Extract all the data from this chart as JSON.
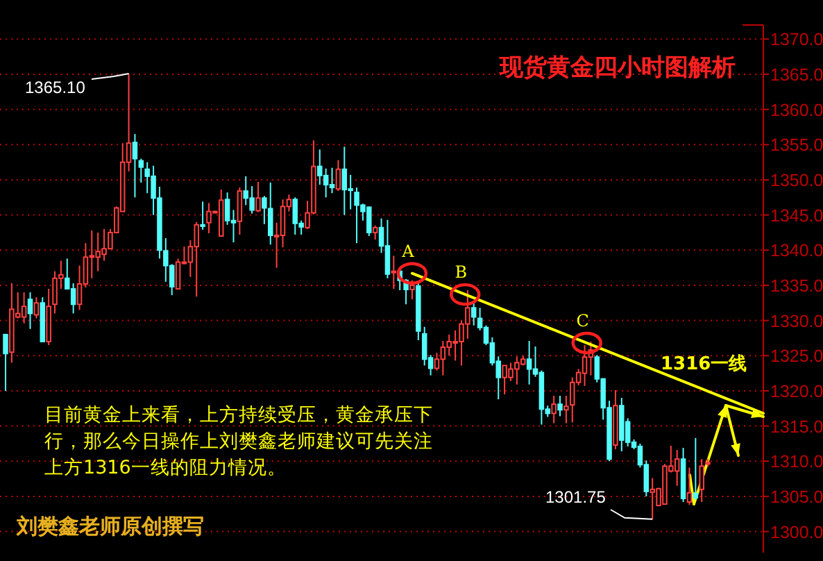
{
  "chart_data": {
    "type": "candlestick",
    "title": "现货黄金四小时图解析",
    "categories": [
      null,
      null,
      null,
      null,
      null,
      null,
      null,
      null,
      null,
      null,
      null,
      null,
      null,
      null,
      null,
      null,
      null,
      null,
      null,
      null,
      null,
      null,
      null,
      null,
      null,
      null,
      null,
      null,
      null,
      null,
      null,
      null,
      null,
      null,
      null,
      null,
      null,
      null,
      null,
      null,
      null,
      null,
      null,
      null,
      null,
      null,
      null,
      null,
      null,
      null,
      null,
      null,
      null,
      null,
      null,
      null,
      null,
      null,
      null,
      null,
      null,
      null,
      null,
      null,
      null,
      null,
      null,
      null,
      null,
      null,
      null,
      null,
      null,
      null,
      null,
      null,
      null,
      null,
      null,
      null,
      null,
      null,
      null,
      null,
      null,
      null,
      null,
      null,
      null,
      null,
      null,
      null,
      null,
      null,
      null,
      null,
      null,
      null,
      null,
      null,
      null,
      null,
      null,
      null,
      null,
      null,
      null,
      null,
      null,
      null,
      null,
      null,
      null,
      null,
      null,
      null,
      null,
      null,
      null,
      null,
      null,
      null,
      null,
      null
    ],
    "ohlc": [
      [
        1328,
        1328,
        1320,
        1325.3
      ],
      [
        1325.5,
        1335.3,
        1324,
        1331.6
      ],
      [
        1330.5,
        1334,
        1330.3,
        1331
      ],
      [
        1330.5,
        1334,
        1329.6,
        1332
      ],
      [
        1333,
        1334,
        1328.8,
        1331
      ],
      [
        1330.8,
        1333.3,
        1330.3,
        1332.5
      ],
      [
        1332.5,
        1333.3,
        1327,
        1327
      ],
      [
        1327,
        1334.5,
        1326.5,
        1332
      ],
      [
        1332.3,
        1337,
        1331,
        1336
      ],
      [
        1336,
        1338.5,
        1334.5,
        1336.5
      ],
      [
        1336,
        1338.8,
        1334.5,
        1334.5
      ],
      [
        1334.5,
        1335.3,
        1331,
        1332.3
      ],
      [
        1332.3,
        1337.8,
        1331.5,
        1335.2
      ],
      [
        1335.2,
        1341,
        1334.7,
        1339
      ],
      [
        1339,
        1342.8,
        1336,
        1339.2
      ],
      [
        1339,
        1342.5,
        1337,
        1339.8
      ],
      [
        1339.4,
        1343,
        1338.5,
        1340.2
      ],
      [
        1340.2,
        1343,
        1340.2,
        1342.5
      ],
      [
        1342.5,
        1346.2,
        1342.5,
        1346
      ],
      [
        1345.5,
        1355.2,
        1345.5,
        1352.5
      ],
      [
        1352.5,
        1365.1,
        1351.2,
        1355.2
      ],
      [
        1355.3,
        1356.5,
        1347.5,
        1353
      ],
      [
        1352.7,
        1353,
        1349.6,
        1351.8
      ],
      [
        1351.5,
        1352.5,
        1348.1,
        1350.5
      ],
      [
        1350.5,
        1352,
        1345,
        1347.4
      ],
      [
        1347.4,
        1349,
        1338.8,
        1340
      ],
      [
        1339.9,
        1341.7,
        1335.5,
        1337.8
      ],
      [
        1337.8,
        1338,
        1333.6,
        1334.8
      ],
      [
        1334.5,
        1338.8,
        1334.4,
        1338.3
      ],
      [
        1338.2,
        1340.5,
        1338,
        1338.3
      ],
      [
        1338.3,
        1341.4,
        1336.2,
        1340.5
      ],
      [
        1340.5,
        1344,
        1333.4,
        1343.6
      ],
      [
        1343.6,
        1346.9,
        1342.9,
        1343.4
      ],
      [
        1343.9,
        1346.7,
        1342.4,
        1345.5
      ],
      [
        1345.5,
        1345.6,
        1345.4,
        1345.5
      ],
      [
        1342,
        1348.6,
        1341.9,
        1347.1
      ],
      [
        1347.2,
        1348.2,
        1343.6,
        1344.2
      ],
      [
        1344.2,
        1345.7,
        1341.1,
        1343.9
      ],
      [
        1344.1,
        1348.9,
        1342.2,
        1348.4
      ],
      [
        1348.4,
        1350.5,
        1346.4,
        1347.4
      ],
      [
        1347.4,
        1349.1,
        1345.2,
        1345.7
      ],
      [
        1345.6,
        1349.7,
        1345.4,
        1347.4
      ],
      [
        1347.4,
        1347.7,
        1343.7,
        1346
      ],
      [
        1345.9,
        1349.6,
        1340.8,
        1342.1
      ],
      [
        1342,
        1343.9,
        1337.5,
        1342.1
      ],
      [
        1342.1,
        1347.2,
        1340.4,
        1346.2
      ],
      [
        1346.2,
        1347.9,
        1345.5,
        1347.2
      ],
      [
        1347.2,
        1347.5,
        1342.2,
        1343.8
      ],
      [
        1343.8,
        1344.2,
        1342.2,
        1343.3
      ],
      [
        1343.2,
        1347,
        1343,
        1345.3
      ],
      [
        1345.3,
        1355.6,
        1345.1,
        1351.9
      ],
      [
        1351.9,
        1354.3,
        1349.3,
        1350.6
      ],
      [
        1350.6,
        1351.6,
        1347.5,
        1349.3
      ],
      [
        1349.3,
        1351.7,
        1348.1,
        1348.9
      ],
      [
        1348.7,
        1352.8,
        1348.4,
        1351.5
      ],
      [
        1351.5,
        1354.7,
        1345,
        1348.6
      ],
      [
        1348.7,
        1350.7,
        1345.8,
        1348.5
      ],
      [
        1348.2,
        1348.9,
        1341,
        1346.4
      ],
      [
        1346.4,
        1346.6,
        1344.2,
        1345.5
      ],
      [
        1346.1,
        1346.2,
        1342,
        1342.5
      ],
      [
        1342.5,
        1343.5,
        1341.5,
        1343.2
      ],
      [
        1343.2,
        1344.5,
        1339.6,
        1340.6
      ],
      [
        1340.6,
        1344.3,
        1336,
        1336.6
      ],
      [
        1336.8,
        1339.2,
        1334.5,
        1337
      ],
      [
        1337,
        1337.3,
        1334.3,
        1335.7
      ],
      [
        1335.7,
        1335.9,
        1332.3,
        1334.4
      ],
      [
        1334.4,
        1335.7,
        1333,
        1335
      ],
      [
        1334.9,
        1335.5,
        1327.2,
        1328.5
      ],
      [
        1328.1,
        1329.1,
        1323.6,
        1324.5
      ],
      [
        1324.7,
        1325.1,
        1322.2,
        1323.2
      ],
      [
        1323.2,
        1325.4,
        1322.9,
        1324.5
      ],
      [
        1324.5,
        1327.1,
        1322.2,
        1326.2
      ],
      [
        1326.2,
        1328,
        1325,
        1327
      ],
      [
        1326.9,
        1328.6,
        1324.3,
        1327
      ],
      [
        1327,
        1330,
        1323.6,
        1329.5
      ],
      [
        1329.5,
        1334.3,
        1327.4,
        1331.8
      ],
      [
        1331.8,
        1332.8,
        1329.3,
        1330.5
      ],
      [
        1330.3,
        1331.8,
        1328.6,
        1329
      ],
      [
        1329,
        1329.3,
        1326.5,
        1326.8
      ],
      [
        1326.8,
        1327.6,
        1323.6,
        1324
      ],
      [
        1324.2,
        1324.9,
        1318.8,
        1321.9
      ],
      [
        1321.9,
        1323.6,
        1319.5,
        1323.6
      ],
      [
        1321.9,
        1324,
        1321.4,
        1323.1
      ],
      [
        1323.1,
        1324.9,
        1320.9,
        1324
      ],
      [
        1323.8,
        1325,
        1323.6,
        1324.5
      ],
      [
        1324.5,
        1327.1,
        1320.9,
        1323.1
      ],
      [
        1323.1,
        1326.3,
        1322,
        1322.4
      ],
      [
        1322.6,
        1322.9,
        1315.2,
        1317.4
      ],
      [
        1317.4,
        1317.9,
        1316.3,
        1316.8
      ],
      [
        1316.8,
        1319.3,
        1315.4,
        1318.1
      ],
      [
        1318.1,
        1319.3,
        1316.4,
        1317.3
      ],
      [
        1317.3,
        1319.3,
        1315.4,
        1317.8
      ],
      [
        1318,
        1321.9,
        1315.5,
        1321.2
      ],
      [
        1321.2,
        1323.1,
        1320.8,
        1322.6
      ],
      [
        1322.5,
        1326.5,
        1320.7,
        1324.8
      ],
      [
        1324.8,
        1327,
        1322.2,
        1325.8
      ],
      [
        1324.8,
        1325.1,
        1321.2,
        1321.7
      ],
      [
        1321.7,
        1321.8,
        1315.9,
        1317.6
      ],
      [
        1317.6,
        1318.6,
        1310,
        1310.3
      ],
      [
        1312.3,
        1320.1,
        1311.7,
        1317.9
      ],
      [
        1317.9,
        1319,
        1311.4,
        1313
      ],
      [
        1315.6,
        1316.1,
        1312.1,
        1312.7
      ],
      [
        1312.7,
        1313.1,
        1311.7,
        1312
      ],
      [
        1312.1,
        1312.5,
        1309.1,
        1309.5
      ],
      [
        1309.5,
        1310.1,
        1305,
        1305.7
      ],
      [
        1305.6,
        1307.6,
        1301.75,
        1306
      ],
      [
        1303.7,
        1306.2,
        1303.7,
        1306.1
      ],
      [
        1303.9,
        1309.6,
        1303.9,
        1309.3
      ],
      [
        1308.6,
        1312.2,
        1308.4,
        1309.3
      ],
      [
        1308.6,
        1311.6,
        1306.5,
        1310.3
      ],
      [
        1310.3,
        1311.9,
        1304.2,
        1304.7
      ],
      [
        1304.2,
        1309.1,
        1303.8,
        1305.5
      ],
      [
        1305.4,
        1313.3,
        1304.5,
        1304.8
      ],
      [
        1306,
        1310.3,
        1304.2,
        1309.3
      ],
      [
        1309.6,
        1310.3,
        1309.2,
        1309.8
      ],
      null,
      null,
      null,
      null,
      null,
      null,
      null,
      null,
      null
    ],
    "colors": [
      "#54fcfc",
      "#ff4040",
      "#ff4040",
      "#ff4040",
      "#54fcfc",
      "#ff4040",
      "#54fcfc",
      "#ff4040",
      "#ff4040",
      "#ff4040",
      "#54fcfc",
      "#54fcfc",
      "#ff4040",
      "#ff4040",
      "#ff4040",
      "#ff4040",
      "#ff4040",
      "#ff4040",
      "#ff4040",
      "#ff4040",
      "#ff4040",
      "#54fcfc",
      "#54fcfc",
      "#54fcfc",
      "#54fcfc",
      "#54fcfc",
      "#54fcfc",
      "#54fcfc",
      "#ff4040",
      "#ff4040",
      "#ff4040",
      "#ff4040",
      "#54fcfc",
      "#ff4040",
      "#ff4040",
      "#ff4040",
      "#54fcfc",
      "#54fcfc",
      "#ff4040",
      "#54fcfc",
      "#54fcfc",
      "#ff4040",
      "#54fcfc",
      "#54fcfc",
      "#ff4040",
      "#ff4040",
      "#ff4040",
      "#54fcfc",
      "#54fcfc",
      "#ff4040",
      "#ff4040",
      "#54fcfc",
      "#54fcfc",
      "#54fcfc",
      "#ff4040",
      "#54fcfc",
      "#54fcfc",
      "#54fcfc",
      "#54fcfc",
      "#54fcfc",
      "#ff4040",
      "#54fcfc",
      "#54fcfc",
      "#ff4040",
      "#54fcfc",
      "#54fcfc",
      "#ff4040",
      "#54fcfc",
      "#54fcfc",
      "#54fcfc",
      "#ff4040",
      "#ff4040",
      "#ff4040",
      "#ff4040",
      "#ff4040",
      "#ff4040",
      "#54fcfc",
      "#54fcfc",
      "#54fcfc",
      "#54fcfc",
      "#54fcfc",
      "#ff4040",
      "#ff4040",
      "#ff4040",
      "#ff4040",
      "#54fcfc",
      "#54fcfc",
      "#54fcfc",
      "#54fcfc",
      "#ff4040",
      "#54fcfc",
      "#ff4040",
      "#ff4040",
      "#ff4040",
      "#ff4040",
      "#ff4040",
      "#54fcfc",
      "#54fcfc",
      "#54fcfc",
      "#ff4040",
      "#54fcfc",
      "#54fcfc",
      "#54fcfc",
      "#54fcfc",
      "#54fcfc",
      "#ff4040",
      "#ff4040",
      "#ff4040",
      "#ff4040",
      "#ff4040",
      "#54fcfc",
      "#ff4040",
      "#54fcfc",
      "#ff4040",
      "#ff4040",
      null,
      null,
      null,
      null,
      null,
      null,
      null,
      null,
      null
    ],
    "series": [
      {
        "type": "line",
        "color": "#ffff00",
        "values": [
          null,
          null,
          null,
          null,
          null,
          null,
          null,
          null,
          null,
          null,
          null,
          null,
          null,
          null,
          null,
          null,
          null,
          null,
          null,
          null,
          null,
          null,
          null,
          null,
          null,
          null,
          null,
          null,
          null,
          null,
          null,
          null,
          null,
          null,
          null,
          null,
          null,
          null,
          null,
          null,
          null,
          null,
          null,
          null,
          null,
          null,
          null,
          null,
          null,
          null,
          null,
          null,
          null,
          null,
          null,
          null,
          null,
          null,
          null,
          null,
          null,
          null,
          null,
          null,
          null,
          null,
          1336.7,
          null,
          null,
          null,
          null,
          null,
          null,
          null,
          null,
          null,
          null,
          null,
          null,
          null,
          null,
          null,
          null,
          null,
          null,
          null,
          null,
          null,
          null,
          null,
          null,
          null,
          null,
          null,
          null,
          null,
          null,
          null,
          null,
          null,
          null,
          null,
          null,
          null,
          null,
          null,
          null,
          null,
          null,
          null,
          null,
          null,
          null,
          null,
          null,
          null,
          null,
          null,
          null,
          null,
          null,
          null,
          null,
          1316.8
        ]
      }
    ],
    "ylim": [
      1297,
      1372
    ],
    "yticks": [
      {
        "value": 1300,
        "label": "1300.0"
      },
      {
        "value": 1305,
        "label": "1305.0"
      },
      {
        "value": 1310,
        "label": "1310.0"
      },
      {
        "value": 1315,
        "label": "1315.0"
      },
      {
        "value": 1320,
        "label": "1320.0"
      },
      {
        "value": 1325,
        "label": "1325.0"
      },
      {
        "value": 1330,
        "label": "1330.0"
      },
      {
        "value": 1335,
        "label": "1335.0"
      },
      {
        "value": 1340,
        "label": "1340.0"
      },
      {
        "value": 1345,
        "label": "1345.0"
      },
      {
        "value": 1350,
        "label": "1350.0"
      },
      {
        "value": 1355,
        "label": "1355.0"
      },
      {
        "value": 1360,
        "label": "1360.0"
      },
      {
        "value": 1365,
        "label": "1365.0"
      },
      {
        "value": 1370,
        "label": "1370.0"
      }
    ],
    "grid": "y",
    "tick_labels": "y",
    "annotations": [
      "1365.10",
      "1301.75",
      {
        "text": "A",
        "y": 1336.7
      },
      {
        "text": "B",
        "y": 1333.7
      },
      {
        "text": "C",
        "y": 1326.8
      },
      "1316一线",
      "目前黄金上来看，上方持续受压，黄金承压下行，那么今日操作上刘樊鑫老师建议可先关注上方1316一线的阻力情况。",
      "刘樊鑫老师原创撰写"
    ]
  }
}
